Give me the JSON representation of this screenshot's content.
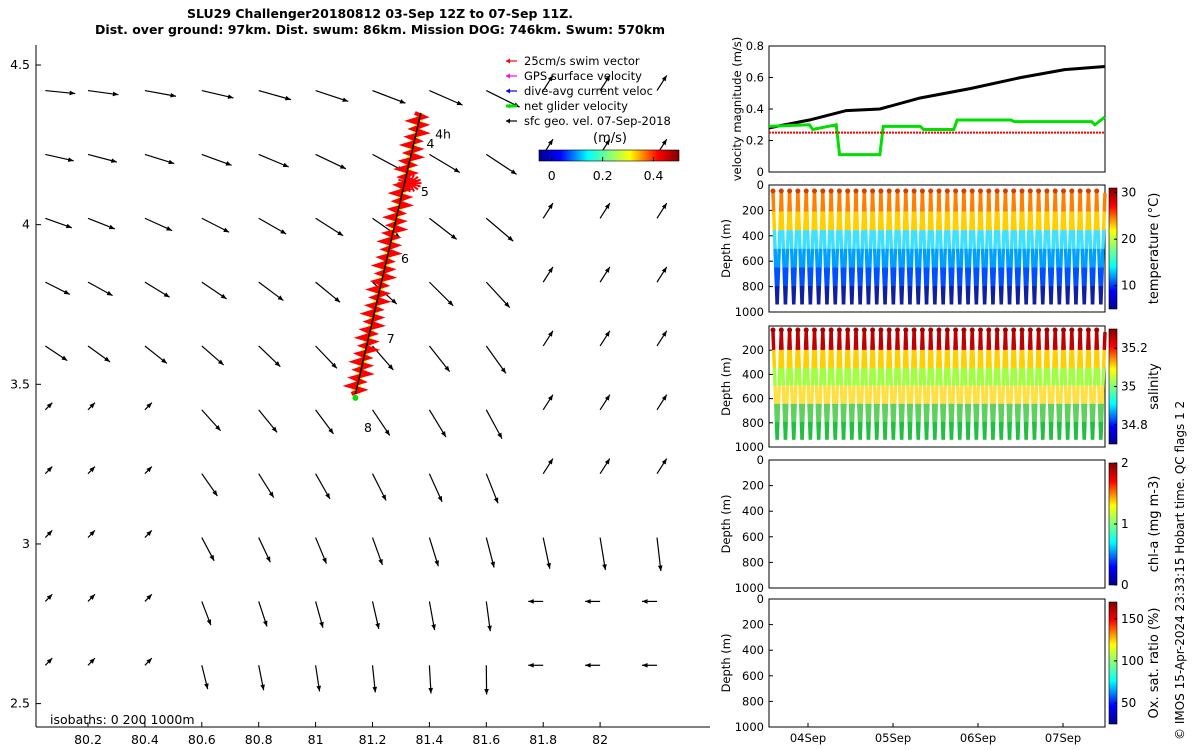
{
  "header": {
    "title_line1": "SLU29 Challenger20180812 03-Sep 12Z to 07-Sep 11Z.",
    "title_line2": "Dist. over ground: 97km. Dist. swum: 86km. Mission DOG: 746km. Swum: 570km"
  },
  "side_note": "© IMOS 15-Apr-2024 23:33:15 Hobart time. QC flags 1  2",
  "colors": {
    "swim": "#ff0000",
    "gps": "#ff00ff",
    "current": "#0000ff",
    "net": "#00e000",
    "black": "#000000",
    "track_yellow": "#ffff00"
  },
  "chart_data": [
    {
      "type": "vector-map",
      "xticks": [
        80.2,
        80.4,
        80.6,
        80.8,
        81,
        81.2,
        81.4,
        81.6,
        81.8,
        82
      ],
      "xtick_labels": [
        "80.2",
        "80.4",
        "80.6",
        "80.8",
        "81",
        "81.2",
        "81.4",
        "81.6",
        "81.8",
        "82"
      ],
      "yticks": [
        2.5,
        3,
        3.5,
        4,
        4.5
      ],
      "ytick_labels": [
        "2.5",
        "3",
        "3.5",
        "4",
        "4.5"
      ],
      "xlim": [
        80.05,
        82.3
      ],
      "ylim": [
        2.45,
        4.6
      ],
      "legend": {
        "position": "top-right",
        "entries": [
          {
            "label": "25cm/s swim vector",
            "color": "#ff0000"
          },
          {
            "label": "GPS surface velocity",
            "color": "#ff00ff"
          },
          {
            "label": "dive-avg current veloc",
            "color": "#0000ff"
          },
          {
            "label": "net glider velocity",
            "color": "#00e000"
          },
          {
            "label": "sfc geo. vel. 07-Sep-2018",
            "color": "#000000"
          }
        ]
      },
      "colorbar": {
        "label": "(m/s)",
        "ticks": [
          "0",
          "0.2",
          "0.4"
        ],
        "range": [
          -0.05,
          0.5
        ]
      },
      "isobaths_label": "isobaths: 0   200  1000m",
      "day_labels": [
        {
          "text": "4h",
          "x": 81.42,
          "y": 4.27
        },
        {
          "text": "4",
          "x": 81.39,
          "y": 4.24
        },
        {
          "text": "5",
          "x": 81.37,
          "y": 4.09
        },
        {
          "text": "6",
          "x": 81.3,
          "y": 3.88
        },
        {
          "text": "7",
          "x": 81.25,
          "y": 3.63
        },
        {
          "text": "8",
          "x": 81.17,
          "y": 3.35
        }
      ],
      "track": {
        "start": [
          81.14,
          3.47
        ],
        "end": [
          81.37,
          4.35
        ]
      },
      "vector_grid": {
        "lons": [
          80.05,
          80.2,
          80.4,
          80.6,
          80.8,
          81.0,
          81.2,
          81.4,
          81.6,
          81.8,
          82.0,
          82.2
        ],
        "lats": [
          4.42,
          4.22,
          4.02,
          3.82,
          3.62,
          3.42,
          3.22,
          3.02,
          2.82,
          2.62
        ]
      }
    },
    {
      "type": "line",
      "ylabel": "velocity magnitude (m/s)",
      "ylim": [
        0,
        0.8
      ],
      "yticks": [
        "0",
        "0.2",
        "0.4",
        "0.6",
        "0.8"
      ],
      "series": [
        {
          "color": "#000000",
          "x": [
            0,
            0.12,
            0.23,
            0.33,
            0.45,
            0.6,
            0.75,
            0.88,
            1.0
          ],
          "values": [
            0.28,
            0.33,
            0.39,
            0.4,
            0.47,
            0.53,
            0.6,
            0.65,
            0.67
          ]
        },
        {
          "color": "#00e000",
          "x": [
            0,
            0.12,
            0.13,
            0.2,
            0.21,
            0.33,
            0.34,
            0.45,
            0.46,
            0.55,
            0.56,
            0.72,
            0.73,
            0.96,
            0.97,
            1.0
          ],
          "values": [
            0.29,
            0.3,
            0.27,
            0.3,
            0.11,
            0.11,
            0.29,
            0.29,
            0.27,
            0.27,
            0.33,
            0.33,
            0.32,
            0.32,
            0.3,
            0.35
          ]
        },
        {
          "color": "#ff0000",
          "x": [
            0,
            1.0
          ],
          "values": [
            0.25,
            0.25
          ]
        }
      ]
    },
    {
      "type": "scatter",
      "ylabel": "Depth (m)",
      "yticks": [
        "0",
        "200",
        "400",
        "600",
        "800",
        "1000"
      ],
      "colorbar_label": "temperature (°C)",
      "colorbar_ticks": [
        "30",
        "20",
        "10"
      ],
      "colorbar_range": [
        5,
        31
      ]
    },
    {
      "type": "scatter",
      "ylabel": "Depth (m)",
      "yticks": [
        "200",
        "400",
        "600",
        "800",
        "1000"
      ],
      "colorbar_label": "salinity",
      "colorbar_ticks": [
        "35.2",
        "35",
        "34.8"
      ],
      "colorbar_range": [
        34.7,
        35.3
      ]
    },
    {
      "type": "scatter",
      "ylabel": "Depth (m)",
      "yticks": [
        "0",
        "200",
        "400",
        "600",
        "800",
        "1000"
      ],
      "colorbar_label": "chl-a (mg m-3)",
      "colorbar_ticks": [
        "2",
        "1",
        "0"
      ],
      "colorbar_range": [
        0,
        2
      ]
    },
    {
      "type": "scatter",
      "ylabel": "Depth (m)",
      "yticks": [
        "0",
        "200",
        "400",
        "600",
        "800",
        "1000"
      ],
      "xtick_labels": [
        "04Sep",
        "05Sep",
        "06Sep",
        "07Sep"
      ],
      "colorbar_label": "Ox. sat. ratio (%)",
      "colorbar_ticks": [
        "150",
        "100",
        "50"
      ],
      "colorbar_range": [
        25,
        170
      ]
    }
  ]
}
